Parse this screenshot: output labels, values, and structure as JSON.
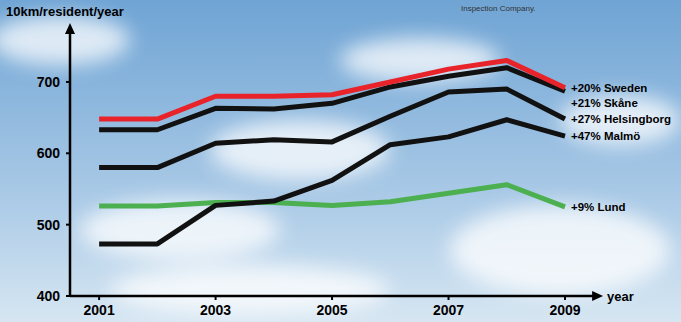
{
  "chart_data": {
    "type": "line",
    "y_label": "10km/resident/year",
    "x_label": "year",
    "annotation": "Inspection Company.",
    "x": [
      2001,
      2002,
      2003,
      2004,
      2005,
      2006,
      2007,
      2008,
      2009
    ],
    "xlim": [
      2000.5,
      2009.5
    ],
    "xticks": [
      2001,
      2003,
      2005,
      2007,
      2009
    ],
    "ylim": [
      400,
      770
    ],
    "yticks": [
      400,
      500,
      600,
      700
    ],
    "grid": false,
    "series": [
      {
        "name": "+20% Sweden",
        "color": "#e8232a",
        "values": [
          648,
          648,
          680,
          680,
          682,
          700,
          718,
          730,
          692
        ]
      },
      {
        "name": "+21% Skåne",
        "color": "#111111",
        "values": [
          633,
          633,
          663,
          662,
          670,
          693,
          708,
          720,
          687
        ]
      },
      {
        "name": "+27% Helsingborg",
        "color": "#111111",
        "values": [
          580,
          580,
          614,
          619,
          616,
          652,
          686,
          690,
          648
        ]
      },
      {
        "name": "+47% Malmö",
        "color": "#111111",
        "values": [
          473,
          473,
          527,
          533,
          562,
          612,
          623,
          647,
          624
        ]
      },
      {
        "name": "+9% Lund",
        "color": "#4caf50",
        "values": [
          526,
          526,
          531,
          531,
          527,
          532,
          544,
          556,
          525
        ]
      }
    ]
  }
}
